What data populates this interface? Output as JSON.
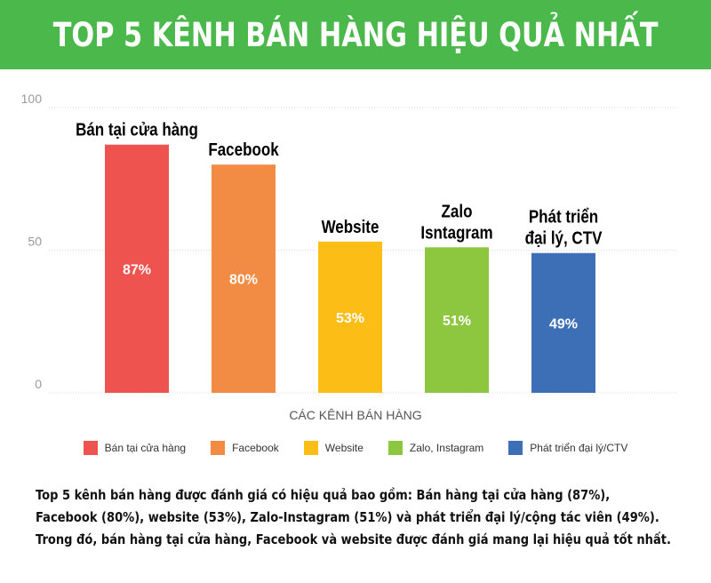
{
  "banner": {
    "title": "TOP 5 KÊNH BÁN HÀNG HIỆU QUẢ NHẤT",
    "background": "#4bb84b"
  },
  "chart_data": {
    "type": "bar",
    "categories": [
      "Bán tại cửa hàng",
      "Facebook",
      "Website",
      "Zalo, Instagram",
      "Phát triển đại lý/CTV"
    ],
    "bar_labels": [
      [
        "Bán tại cửa hàng"
      ],
      [
        "Facebook"
      ],
      [
        "Website"
      ],
      [
        "Zalo",
        "Isntagram"
      ],
      [
        "Phát triển",
        "đại lý, CTV"
      ]
    ],
    "values": [
      87,
      80,
      53,
      51,
      49
    ],
    "value_labels": [
      "87%",
      "80%",
      "53%",
      "51%",
      "49%"
    ],
    "colors": [
      "#ef5350",
      "#f28c45",
      "#fbbd16",
      "#8dc63f",
      "#3d6fb6"
    ],
    "xlabel": "CÁC KÊNH BÁN HÀNG",
    "ylabel": "",
    "ylim": [
      0,
      100
    ],
    "yticks": [
      0,
      50,
      100
    ],
    "grid": true,
    "legend_position": "bottom"
  },
  "legend": {
    "items": [
      {
        "label": "Bán tại cửa hàng",
        "color": "#ef5350"
      },
      {
        "label": "Facebook",
        "color": "#f28c45"
      },
      {
        "label": "Website",
        "color": "#fbbd16"
      },
      {
        "label": "Zalo, Instagram",
        "color": "#8dc63f"
      },
      {
        "label": "Phát triển đại lý/CTV",
        "color": "#3d6fb6"
      }
    ]
  },
  "description": {
    "lines": [
      "Top 5 kênh bán hàng được đánh giá có hiệu quả bao gồm: Bán hàng tại cửa hàng (87%),",
      "Facebook (80%), website (53%), Zalo-Instagram (51%) và phát triển đại lý/cộng tác viên (49%).",
      "Trong đó, bán hàng tại cửa hàng, Facebook và website được đánh giá mang lại hiệu quả tốt nhất."
    ]
  }
}
